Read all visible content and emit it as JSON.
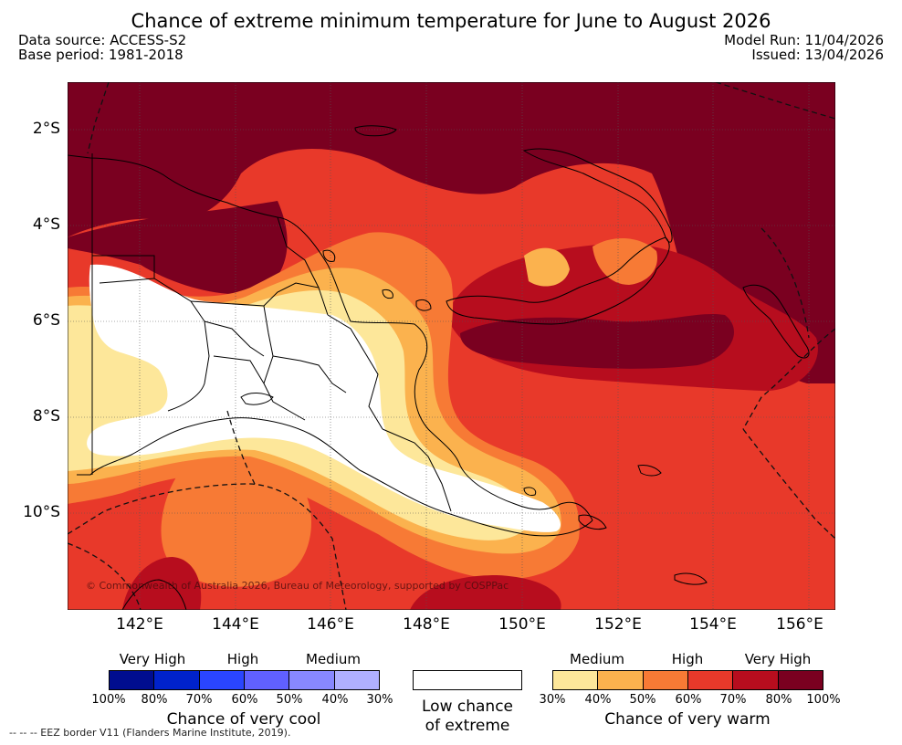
{
  "title": "Chance of extreme minimum temperature for June to August 2026",
  "meta": {
    "data_source": "Data source: ACCESS-S2",
    "base_period": "Base period: 1981-2018",
    "model_run": "Model Run: 11/04/2026",
    "issued": "Issued: 13/04/2026"
  },
  "map": {
    "lat_labels": [
      "2°S",
      "4°S",
      "6°S",
      "8°S",
      "10°S"
    ],
    "lon_labels": [
      "142°E",
      "144°E",
      "146°E",
      "148°E",
      "150°E",
      "152°E",
      "154°E",
      "156°E"
    ],
    "copyright": "© Commonwealth of Australia 2026, Bureau of Meteorology, supported by COSPPac",
    "colors": {
      "very_high_warm": "#7a0020",
      "high_warm": "#b70d1e",
      "mid_high_warm": "#e8392a",
      "medium_warm": "#f77a35",
      "low_medium_warm": "#fbb24e",
      "lowest_warm": "#fde79a",
      "low_chance": "#ffffff"
    }
  },
  "legend": {
    "cool": {
      "categories": [
        "Very High",
        "High",
        "Medium"
      ],
      "ticks": [
        "100%",
        "80%",
        "70%",
        "60%",
        "50%",
        "40%",
        "30%"
      ],
      "colors": [
        "#000d8f",
        "#0022cc",
        "#2a45ff",
        "#6060ff",
        "#8888ff",
        "#b0b0ff"
      ],
      "caption": "Chance of very cool"
    },
    "low": {
      "caption_line1": "Low chance",
      "caption_line2": "of extreme"
    },
    "warm": {
      "categories": [
        "Medium",
        "High",
        "Very High"
      ],
      "ticks": [
        "30%",
        "40%",
        "50%",
        "60%",
        "70%",
        "80%",
        "100%"
      ],
      "colors": [
        "#fde79a",
        "#fbb24e",
        "#f77a35",
        "#e8392a",
        "#b70d1e",
        "#7a0020"
      ],
      "caption": "Chance of very warm"
    }
  },
  "footnote": "--  --  -- EEZ border V11 (Flanders Marine Institute, 2019)."
}
